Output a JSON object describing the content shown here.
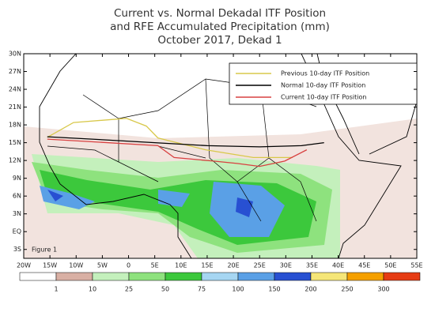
{
  "chart_data": {
    "type": "map",
    "title": [
      "Current vs. Normal Dekadal ITF Position",
      "and RFE Accumulated Precipitation (mm)",
      "October 2017, Dekad 1"
    ],
    "annotation": "Figure 1",
    "xlim": [
      -20,
      55
    ],
    "ylim": [
      -4.5,
      30
    ],
    "xticks": [
      {
        "value": -20,
        "label": "20W"
      },
      {
        "value": -15,
        "label": "15W"
      },
      {
        "value": -10,
        "label": "10W"
      },
      {
        "value": -5,
        "label": "5W"
      },
      0,
      {
        "value": 5,
        "label": "5E"
      },
      {
        "value": 10,
        "label": "10E"
      },
      {
        "value": 15,
        "label": "15E"
      },
      {
        "value": 20,
        "label": "20E"
      },
      {
        "value": 25,
        "label": "25E"
      },
      {
        "value": 30,
        "label": "30E"
      },
      {
        "value": 35,
        "label": "35E"
      },
      {
        "value": 40,
        "label": "40E"
      },
      {
        "value": 45,
        "label": "45E"
      },
      {
        "value": 50,
        "label": "50E"
      },
      {
        "value": 55,
        "label": "55E"
      }
    ],
    "yticks": [
      {
        "value": -3,
        "label": "3S"
      },
      {
        "value": 0,
        "label": "EQ"
      },
      {
        "value": 3,
        "label": "3N"
      },
      {
        "value": 6,
        "label": "6N"
      },
      {
        "value": 9,
        "label": "9N"
      },
      {
        "value": 12,
        "label": "12N"
      },
      {
        "value": 15,
        "label": "15N"
      },
      {
        "value": 18,
        "label": "18N"
      },
      {
        "value": 21,
        "label": "21N"
      },
      {
        "value": 24,
        "label": "24N"
      },
      {
        "value": 27,
        "label": "27N"
      },
      {
        "value": 30,
        "label": "30N"
      }
    ],
    "series": [
      {
        "name": "Previous 10-day ITF Position",
        "color": "#d8c84a",
        "x": [
          -15.5,
          -10.5,
          -0.4,
          3.4,
          5.6,
          14.7,
          23.8,
          31.3
        ],
        "values": [
          15.9,
          18.4,
          19.1,
          17.8,
          15.8,
          13.8,
          12.5,
          12.5
        ]
      },
      {
        "name": "Normal 10-day ITF Position",
        "color": "#000000",
        "x": [
          -15.5,
          -5,
          5,
          15,
          25,
          33,
          37.3
        ],
        "values": [
          16,
          15.5,
          15,
          14.5,
          14.3,
          14.5,
          15
        ]
      },
      {
        "name": "Current 10-day ITF Position",
        "color": "#d84040",
        "x": [
          -15.5,
          5.6,
          8.7,
          16.2,
          20.7,
          25,
          29.8,
          34
        ],
        "values": [
          15.6,
          14.5,
          12.5,
          11.9,
          11.5,
          11,
          11.9,
          13.8
        ]
      }
    ],
    "colorbar": {
      "boundaries": [
        1,
        10,
        25,
        50,
        75,
        100,
        150,
        200,
        250,
        300
      ],
      "colors": [
        "#ffffff",
        "#d9b0a4",
        "#c4f0bc",
        "#8ee27e",
        "#3cc83c",
        "#a6d6f2",
        "#5aa0e6",
        "#2850d2",
        "#f5e678",
        "#f5a000",
        "#e63c14"
      ]
    }
  }
}
